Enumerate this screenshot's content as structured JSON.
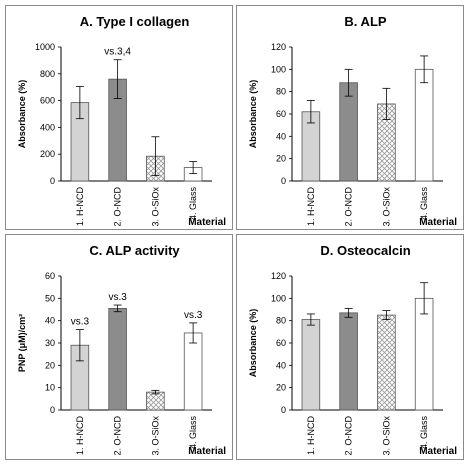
{
  "chart_data": [
    {
      "type": "bar",
      "title": "A. Type I collagen",
      "ylabel": "Absorbance (%)",
      "xlabel": "Material",
      "ylim": [
        0,
        1000
      ],
      "yticks": [
        0,
        200,
        400,
        600,
        800,
        1000
      ],
      "categories": [
        "1. H-NCD",
        "2. O-NCD",
        "3. O-SiOx",
        "4. Glass"
      ],
      "values": [
        585,
        760,
        185,
        100
      ],
      "errors": [
        120,
        145,
        145,
        45
      ],
      "annotations": [
        "",
        "vs.3,4",
        "",
        ""
      ],
      "fills": [
        "#d3d3d3",
        "#8c8c8c",
        "hatch",
        "#ffffff"
      ]
    },
    {
      "type": "bar",
      "title": "B. ALP",
      "ylabel": "Absorbance (%)",
      "xlabel": "Material",
      "ylim": [
        0,
        120
      ],
      "yticks": [
        0,
        20,
        40,
        60,
        80,
        100,
        120
      ],
      "categories": [
        "1. H-NCD",
        "2. O-NCD",
        "3. O-SiOx",
        "4. Glass"
      ],
      "values": [
        62,
        88,
        69,
        100
      ],
      "errors": [
        10,
        12,
        14,
        12
      ],
      "annotations": [
        "",
        "",
        "",
        ""
      ],
      "fills": [
        "#d3d3d3",
        "#8c8c8c",
        "hatch",
        "#ffffff"
      ]
    },
    {
      "type": "bar",
      "title": "C. ALP activity",
      "ylabel": "PNP (μM)/cm²",
      "xlabel": "Material",
      "ylim": [
        0,
        60
      ],
      "yticks": [
        0,
        10,
        20,
        30,
        40,
        50,
        60
      ],
      "categories": [
        "1. H-NCD",
        "2. O-NCD",
        "3. O-SiOx",
        "4. Glass"
      ],
      "values": [
        29,
        45.5,
        8,
        34.5
      ],
      "errors": [
        7,
        1.5,
        0.8,
        4.5
      ],
      "annotations": [
        "vs.3",
        "vs.3",
        "",
        "vs.3"
      ],
      "fills": [
        "#d3d3d3",
        "#8c8c8c",
        "hatch",
        "#ffffff"
      ]
    },
    {
      "type": "bar",
      "title": "D. Osteocalcin",
      "ylabel": "Absorbance (%)",
      "xlabel": "Material",
      "ylim": [
        0,
        120
      ],
      "yticks": [
        0,
        20,
        40,
        60,
        80,
        100,
        120
      ],
      "categories": [
        "1. H-NCD",
        "2. O-NCD",
        "3. O-SiOx",
        "4. Glass"
      ],
      "values": [
        81,
        87,
        85,
        100
      ],
      "errors": [
        5,
        4,
        4,
        14
      ],
      "annotations": [
        "",
        "",
        "",
        ""
      ],
      "fills": [
        "#d3d3d3",
        "#8c8c8c",
        "hatch",
        "#ffffff"
      ]
    }
  ]
}
